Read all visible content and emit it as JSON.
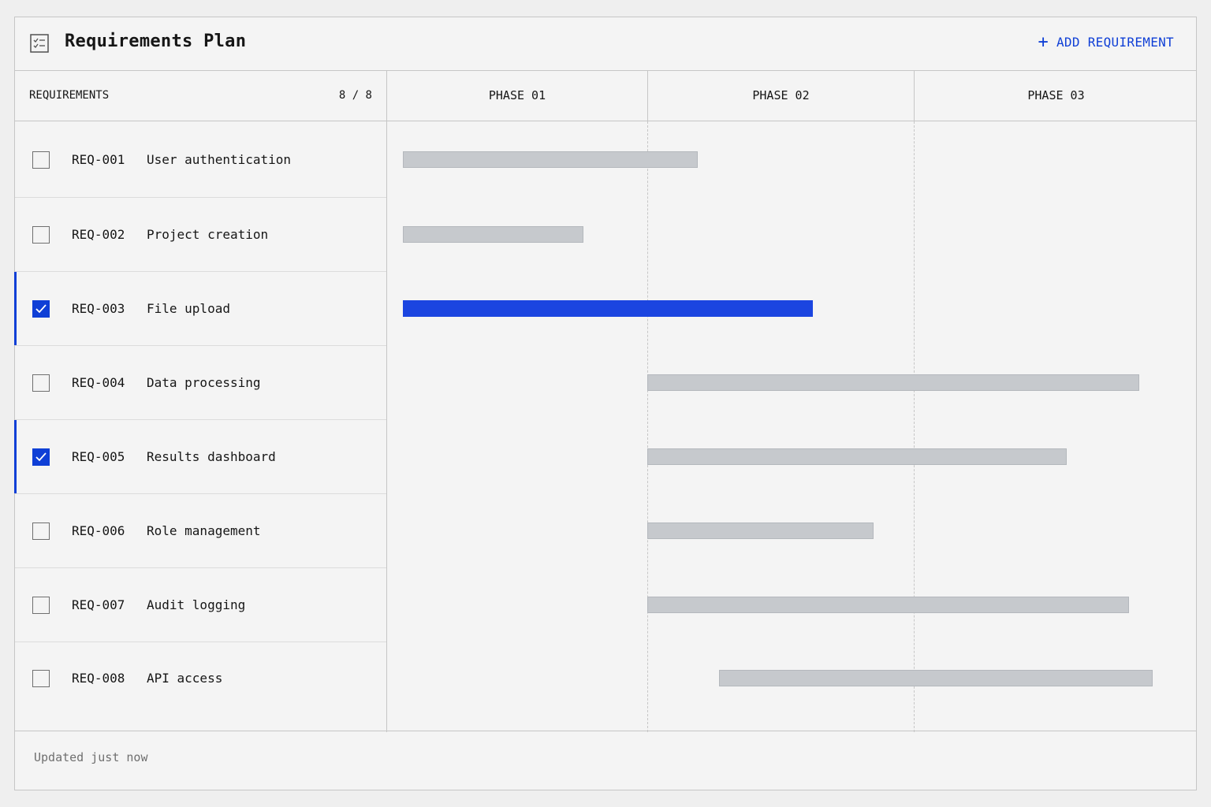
{
  "header": {
    "title": "Requirements Plan",
    "add_label": "ADD REQUIREMENT",
    "add_icon": "plus-icon",
    "app_icon": "checklist-icon"
  },
  "columns": {
    "requirements_label": "REQUIREMENTS",
    "count": "8 / 8",
    "phases": [
      "PHASE 01",
      "PHASE 02",
      "PHASE 03"
    ]
  },
  "requirements": [
    {
      "id": "REQ-001",
      "name": "User authentication",
      "checked": false,
      "start_phase": 0.0,
      "end_phase": 1.19
    },
    {
      "id": "REQ-002",
      "name": "Project creation",
      "checked": false,
      "start_phase": 0.0,
      "end_phase": 0.74
    },
    {
      "id": "REQ-003",
      "name": "File upload",
      "checked": true,
      "start_phase": 0.0,
      "end_phase": 1.62
    },
    {
      "id": "REQ-004",
      "name": "Data processing",
      "checked": false,
      "start_phase": 1.0,
      "end_phase": 2.84
    },
    {
      "id": "REQ-005",
      "name": "Results dashboard",
      "checked": true,
      "start_phase": 1.0,
      "end_phase": 2.57
    },
    {
      "id": "REQ-006",
      "name": "Role management",
      "checked": false,
      "start_phase": 1.0,
      "end_phase": 1.85
    },
    {
      "id": "REQ-007",
      "name": "Audit logging",
      "checked": false,
      "start_phase": 1.0,
      "end_phase": 2.8
    },
    {
      "id": "REQ-008",
      "name": "API access",
      "checked": false,
      "start_phase": 1.27,
      "end_phase": 2.89
    }
  ],
  "footer": {
    "status": "Updated just now"
  },
  "colors": {
    "accent": "#0f3fd6",
    "bar": "#c6c9cd",
    "border": "#c6c6c6"
  }
}
